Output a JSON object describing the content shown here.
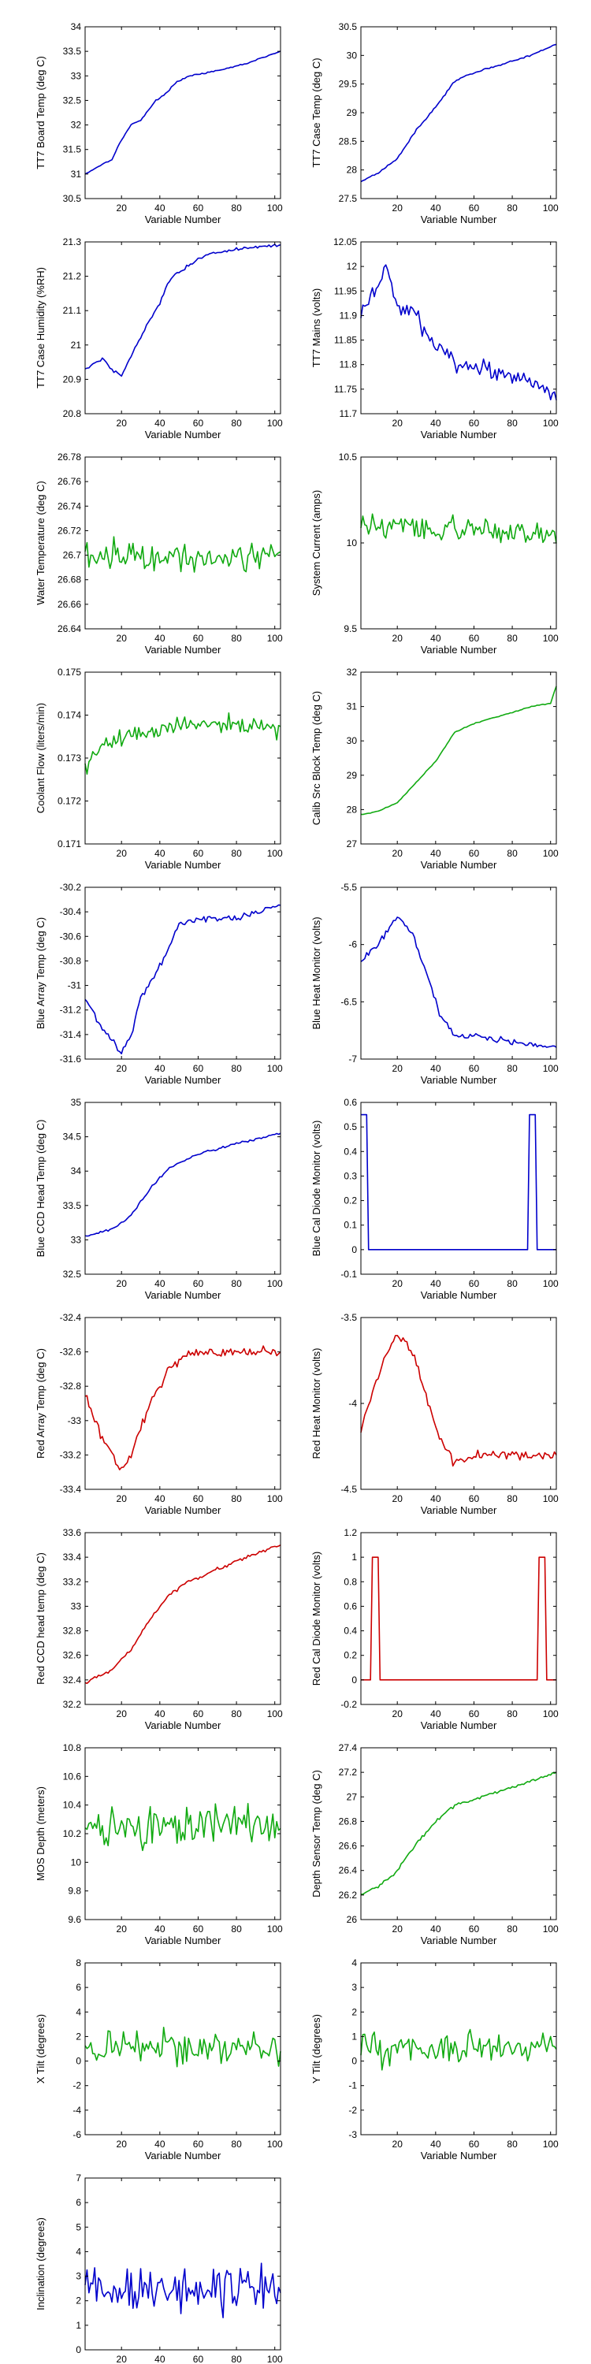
{
  "colors": {
    "blue": "#0000cc",
    "green": "#11aa11",
    "red": "#cc0000",
    "axis": "#000000"
  },
  "chart_data": [
    {
      "type": "line",
      "ylabel": "TT7 Board Temp (deg C)",
      "xlabel": "Variable Number",
      "xlim": [
        1,
        103
      ],
      "ylim": [
        30.5,
        34
      ],
      "xticks": [
        20,
        40,
        60,
        80,
        100
      ],
      "yticks": [
        30.5,
        31,
        31.5,
        32,
        32.5,
        33,
        33.5,
        34
      ],
      "color": "blue",
      "profile": [
        [
          1,
          31.0
        ],
        [
          10,
          31.2
        ],
        [
          15,
          31.3
        ],
        [
          20,
          31.7
        ],
        [
          25,
          32.0
        ],
        [
          30,
          32.1
        ],
        [
          38,
          32.5
        ],
        [
          42,
          32.6
        ],
        [
          48,
          32.85
        ],
        [
          55,
          33.0
        ],
        [
          70,
          33.1
        ],
        [
          85,
          33.25
        ],
        [
          103,
          33.5
        ]
      ],
      "noise": 0.02
    },
    {
      "type": "line",
      "ylabel": "TT7 Case Temp (deg C)",
      "xlabel": "Variable Number",
      "xlim": [
        1,
        103
      ],
      "ylim": [
        27.5,
        30.5
      ],
      "xticks": [
        20,
        40,
        60,
        80,
        100
      ],
      "yticks": [
        27.5,
        28,
        28.5,
        29,
        29.5,
        30,
        30.5
      ],
      "color": "blue",
      "profile": [
        [
          1,
          27.8
        ],
        [
          10,
          27.95
        ],
        [
          20,
          28.2
        ],
        [
          30,
          28.7
        ],
        [
          40,
          29.1
        ],
        [
          50,
          29.55
        ],
        [
          60,
          29.7
        ],
        [
          75,
          29.85
        ],
        [
          90,
          30.0
        ],
        [
          103,
          30.2
        ]
      ],
      "noise": 0.02
    },
    {
      "type": "line",
      "ylabel": "TT7 Case Humidity (%RH)",
      "xlabel": "Variable Number",
      "xlim": [
        1,
        103
      ],
      "ylim": [
        20.8,
        21.3
      ],
      "xticks": [
        20,
        40,
        60,
        80,
        100
      ],
      "yticks": [
        20.8,
        20.9,
        21,
        21.1,
        21.2,
        21.3
      ],
      "color": "blue",
      "profile": [
        [
          1,
          20.93
        ],
        [
          10,
          20.96
        ],
        [
          15,
          20.93
        ],
        [
          20,
          20.91
        ],
        [
          25,
          20.97
        ],
        [
          30,
          21.02
        ],
        [
          35,
          21.08
        ],
        [
          40,
          21.12
        ],
        [
          45,
          21.19
        ],
        [
          50,
          21.21
        ],
        [
          60,
          21.25
        ],
        [
          70,
          21.27
        ],
        [
          80,
          21.28
        ],
        [
          103,
          21.29
        ]
      ],
      "noise": 0.008
    },
    {
      "type": "line",
      "ylabel": "TT7 Mains  (volts)",
      "xlabel": "Variable Number",
      "xlim": [
        1,
        103
      ],
      "ylim": [
        11.7,
        12.05
      ],
      "xticks": [
        20,
        40,
        60,
        80,
        100
      ],
      "yticks": [
        11.7,
        11.75,
        11.8,
        11.85,
        11.9,
        11.95,
        12,
        12.05
      ],
      "color": "blue",
      "profile": [
        [
          1,
          11.9
        ],
        [
          8,
          11.95
        ],
        [
          14,
          12.0
        ],
        [
          18,
          11.95
        ],
        [
          22,
          11.9
        ],
        [
          28,
          11.92
        ],
        [
          35,
          11.86
        ],
        [
          42,
          11.83
        ],
        [
          50,
          11.8
        ],
        [
          65,
          11.79
        ],
        [
          75,
          11.78
        ],
        [
          85,
          11.77
        ],
        [
          95,
          11.76
        ],
        [
          103,
          11.74
        ]
      ],
      "noise": 0.025
    },
    {
      "type": "line",
      "ylabel": "Water Temperature (deg C)",
      "xlabel": "Variable Number",
      "xlim": [
        1,
        103
      ],
      "ylim": [
        26.64,
        26.78
      ],
      "xticks": [
        20,
        40,
        60,
        80,
        100
      ],
      "yticks": [
        26.64,
        26.66,
        26.68,
        26.7,
        26.72,
        26.74,
        26.76,
        26.78
      ],
      "color": "green",
      "profile": [
        [
          1,
          26.7
        ],
        [
          103,
          26.7
        ]
      ],
      "noise": 0.018
    },
    {
      "type": "line",
      "ylabel": "System Current (amps)",
      "xlabel": "Variable Number",
      "xlim": [
        1,
        103
      ],
      "ylim": [
        9.5,
        10.5
      ],
      "xticks": [
        20,
        40,
        60,
        80,
        100
      ],
      "yticks": [
        9.5,
        10,
        10.5
      ],
      "color": "green",
      "profile": [
        [
          1,
          10.1
        ],
        [
          103,
          10.05
        ]
      ],
      "noise": 0.1
    },
    {
      "type": "line",
      "ylabel": "Coolant Flow (liters/min)",
      "xlabel": "Variable Number",
      "xlim": [
        1,
        103
      ],
      "ylim": [
        0.171,
        0.175
      ],
      "xticks": [
        20,
        40,
        60,
        80,
        100
      ],
      "yticks": [
        0.171,
        0.172,
        0.173,
        0.174,
        0.175
      ],
      "color": "green",
      "profile": [
        [
          1,
          0.1728
        ],
        [
          10,
          0.1733
        ],
        [
          30,
          0.1736
        ],
        [
          60,
          0.1738
        ],
        [
          103,
          0.1737
        ]
      ],
      "noise": 0.0003
    },
    {
      "type": "line",
      "ylabel": "Calib Src Block Temp (deg C)",
      "xlabel": "Variable Number",
      "xlim": [
        1,
        103
      ],
      "ylim": [
        27,
        32
      ],
      "xticks": [
        20,
        40,
        60,
        80,
        100
      ],
      "yticks": [
        27,
        28,
        29,
        30,
        31,
        32
      ],
      "color": "green",
      "profile": [
        [
          1,
          27.85
        ],
        [
          10,
          27.95
        ],
        [
          20,
          28.2
        ],
        [
          30,
          28.8
        ],
        [
          40,
          29.4
        ],
        [
          50,
          30.25
        ],
        [
          60,
          30.5
        ],
        [
          75,
          30.75
        ],
        [
          90,
          31.0
        ],
        [
          100,
          31.1
        ],
        [
          103,
          31.6
        ]
      ],
      "noise": 0.02
    },
    {
      "type": "line",
      "ylabel": "Blue Array Temp (deg C)",
      "xlabel": "Variable Number",
      "xlim": [
        1,
        103
      ],
      "ylim": [
        -31.6,
        -30.2
      ],
      "xticks": [
        20,
        40,
        60,
        80,
        100
      ],
      "yticks": [
        -31.6,
        -31.4,
        -31.2,
        -31,
        -30.8,
        -30.6,
        -30.4,
        -30.2
      ],
      "color": "blue",
      "profile": [
        [
          1,
          -31.1
        ],
        [
          10,
          -31.35
        ],
        [
          20,
          -31.55
        ],
        [
          25,
          -31.4
        ],
        [
          30,
          -31.1
        ],
        [
          40,
          -30.85
        ],
        [
          50,
          -30.5
        ],
        [
          60,
          -30.45
        ],
        [
          80,
          -30.45
        ],
        [
          103,
          -30.35
        ]
      ],
      "noise": 0.04
    },
    {
      "type": "line",
      "ylabel": "Blue Heat Monitor (volts)",
      "xlabel": "Variable Number",
      "xlim": [
        1,
        103
      ],
      "ylim": [
        -7,
        -5.5
      ],
      "xticks": [
        20,
        40,
        60,
        80,
        100
      ],
      "yticks": [
        -7,
        -6.5,
        -6,
        -5.5
      ],
      "color": "blue",
      "profile": [
        [
          1,
          -6.15
        ],
        [
          10,
          -6.0
        ],
        [
          20,
          -5.75
        ],
        [
          28,
          -5.9
        ],
        [
          35,
          -6.25
        ],
        [
          42,
          -6.6
        ],
        [
          50,
          -6.8
        ],
        [
          60,
          -6.8
        ],
        [
          80,
          -6.85
        ],
        [
          103,
          -6.9
        ]
      ],
      "noise": 0.04
    },
    {
      "type": "line",
      "ylabel": "Blue CCD Head Temp (deg C)",
      "xlabel": "Variable Number",
      "xlim": [
        1,
        103
      ],
      "ylim": [
        32.5,
        35
      ],
      "xticks": [
        20,
        40,
        60,
        80,
        100
      ],
      "yticks": [
        32.5,
        33,
        33.5,
        34,
        34.5,
        35
      ],
      "color": "blue",
      "profile": [
        [
          1,
          33.05
        ],
        [
          15,
          33.15
        ],
        [
          25,
          33.35
        ],
        [
          35,
          33.75
        ],
        [
          45,
          34.05
        ],
        [
          60,
          34.25
        ],
        [
          80,
          34.4
        ],
        [
          103,
          34.55
        ]
      ],
      "noise": 0.025
    },
    {
      "type": "pulse",
      "ylabel": "Blue Cal Diode Monitor (volts)",
      "xlabel": "Variable Number",
      "xlim": [
        1,
        103
      ],
      "ylim": [
        -0.1,
        0.6
      ],
      "xticks": [
        20,
        40,
        60,
        80,
        100
      ],
      "yticks": [
        -0.1,
        0,
        0.1,
        0.2,
        0.3,
        0.4,
        0.5,
        0.6
      ],
      "color": "blue",
      "base": 0,
      "high": 0.55,
      "pulses": [
        [
          1,
          4
        ],
        [
          89,
          92
        ]
      ]
    },
    {
      "type": "line",
      "ylabel": "Red Array Temp (deg C)",
      "xlabel": "Variable Number",
      "xlim": [
        1,
        103
      ],
      "ylim": [
        -33.4,
        -32.4
      ],
      "xticks": [
        20,
        40,
        60,
        80,
        100
      ],
      "yticks": [
        -33.4,
        -33.2,
        -33,
        -32.8,
        -32.6,
        -32.4
      ],
      "color": "red",
      "profile": [
        [
          1,
          -32.85
        ],
        [
          10,
          -33.1
        ],
        [
          20,
          -33.3
        ],
        [
          25,
          -33.2
        ],
        [
          35,
          -32.9
        ],
        [
          45,
          -32.7
        ],
        [
          55,
          -32.6
        ],
        [
          70,
          -32.6
        ],
        [
          103,
          -32.6
        ]
      ],
      "noise": 0.04
    },
    {
      "type": "line",
      "ylabel": "Red Heat Monitor (volts)",
      "xlabel": "Variable Number",
      "xlim": [
        1,
        103
      ],
      "ylim": [
        -4.5,
        -3.5
      ],
      "xticks": [
        20,
        40,
        60,
        80,
        100
      ],
      "yticks": [
        -4.5,
        -4,
        -3.5
      ],
      "color": "red",
      "profile": [
        [
          1,
          -4.15
        ],
        [
          8,
          -3.9
        ],
        [
          15,
          -3.7
        ],
        [
          20,
          -3.6
        ],
        [
          28,
          -3.7
        ],
        [
          35,
          -3.95
        ],
        [
          42,
          -4.2
        ],
        [
          50,
          -4.35
        ],
        [
          60,
          -4.3
        ],
        [
          80,
          -4.3
        ],
        [
          103,
          -4.3
        ]
      ],
      "noise": 0.04
    },
    {
      "type": "line",
      "ylabel": "Red CCD head temp (deg C)",
      "xlabel": "Variable Number",
      "xlim": [
        1,
        103
      ],
      "ylim": [
        32.2,
        33.6
      ],
      "xticks": [
        20,
        40,
        60,
        80,
        100
      ],
      "yticks": [
        32.2,
        32.4,
        32.6,
        32.8,
        33,
        33.2,
        33.4,
        33.6
      ],
      "color": "red",
      "profile": [
        [
          1,
          32.38
        ],
        [
          15,
          32.48
        ],
        [
          25,
          32.65
        ],
        [
          35,
          32.9
        ],
        [
          45,
          33.1
        ],
        [
          55,
          33.2
        ],
        [
          70,
          33.3
        ],
        [
          85,
          33.4
        ],
        [
          103,
          33.5
        ]
      ],
      "noise": 0.02
    },
    {
      "type": "pulse",
      "ylabel": "Red Cal Diode Monitor (volts)",
      "xlabel": "Variable Number",
      "xlim": [
        1,
        103
      ],
      "ylim": [
        -0.2,
        1.2
      ],
      "xticks": [
        20,
        40,
        60,
        80,
        100
      ],
      "yticks": [
        -0.2,
        0,
        0.2,
        0.4,
        0.6,
        0.8,
        1,
        1.2
      ],
      "color": "red",
      "base": 0,
      "high": 1.0,
      "pulses": [
        [
          7,
          10
        ],
        [
          94,
          97
        ]
      ]
    },
    {
      "type": "line",
      "ylabel": "MOS Depth  (meters)",
      "xlabel": "Variable Number",
      "xlim": [
        1,
        103
      ],
      "ylim": [
        9.6,
        10.8
      ],
      "xticks": [
        20,
        40,
        60,
        80,
        100
      ],
      "yticks": [
        9.6,
        9.8,
        10,
        10.2,
        10.4,
        10.6,
        10.8
      ],
      "color": "green",
      "profile": [
        [
          1,
          10.25
        ],
        [
          103,
          10.25
        ]
      ],
      "noise": 0.22
    },
    {
      "type": "line",
      "ylabel": "Depth Sensor Temp (deg C)",
      "xlabel": "Variable Number",
      "xlim": [
        1,
        103
      ],
      "ylim": [
        26,
        27.4
      ],
      "xticks": [
        20,
        40,
        60,
        80,
        100
      ],
      "yticks": [
        26,
        26.2,
        26.4,
        26.6,
        26.8,
        27,
        27.2,
        27.4
      ],
      "color": "green",
      "profile": [
        [
          1,
          26.2
        ],
        [
          10,
          26.27
        ],
        [
          20,
          26.4
        ],
        [
          30,
          26.62
        ],
        [
          40,
          26.8
        ],
        [
          50,
          26.93
        ],
        [
          65,
          27.0
        ],
        [
          80,
          27.08
        ],
        [
          103,
          27.2
        ]
      ],
      "noise": 0.02
    },
    {
      "type": "line",
      "ylabel": "X Tilt  (degrees)",
      "xlabel": "Variable Number",
      "xlim": [
        1,
        103
      ],
      "ylim": [
        -6,
        8
      ],
      "xticks": [
        20,
        40,
        60,
        80,
        100
      ],
      "yticks": [
        -6,
        -4,
        -2,
        0,
        2,
        4,
        6,
        8
      ],
      "color": "green",
      "profile": [
        [
          1,
          1.2
        ],
        [
          103,
          1.0
        ]
      ],
      "noise": 2.0
    },
    {
      "type": "line",
      "ylabel": "Y Tilt  (degrees)",
      "xlabel": "Variable Number",
      "xlim": [
        1,
        103
      ],
      "ylim": [
        -3,
        4
      ],
      "xticks": [
        20,
        40,
        60,
        80,
        100
      ],
      "yticks": [
        -3,
        -2,
        -1,
        0,
        1,
        2,
        3,
        4
      ],
      "color": "green",
      "profile": [
        [
          1,
          0.5
        ],
        [
          103,
          0.6
        ]
      ],
      "noise": 1.0
    },
    {
      "type": "line",
      "ylabel": "Inclination  (degrees)",
      "xlabel": "Variable Number",
      "xlim": [
        1,
        103
      ],
      "ylim": [
        0,
        7
      ],
      "xticks": [
        20,
        40,
        60,
        80,
        100
      ],
      "yticks": [
        0,
        1,
        2,
        3,
        4,
        5,
        6,
        7
      ],
      "color": "blue",
      "profile": [
        [
          1,
          2.5
        ],
        [
          103,
          2.5
        ]
      ],
      "noise": 1.3
    }
  ]
}
